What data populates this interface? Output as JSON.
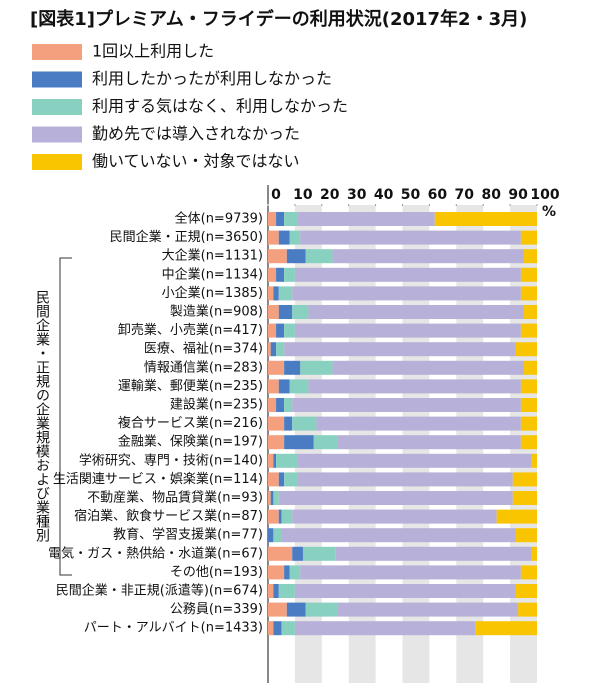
{
  "chart_data": {
    "type": "stacked_barh",
    "title": "[図表1]プレミアム・フライデーの利用状況(2017年2・3月)",
    "group_label": "民間企業・正規の企業規模および業種別",
    "unit": "%",
    "categories": [
      "全体(n=9739)",
      "民間企業・正規(n=3650)",
      "大企業(n=1131)",
      "中企業(n=1134)",
      "小企業(n=1385)",
      "製造業(n=908)",
      "卸売業、小売業(n=417)",
      "医療、福祉(n=374)",
      "情報通信業(n=283)",
      "運輸業、郵便業(n=235)",
      "建設業(n=235)",
      "複合サービス業(n=216)",
      "金融業、保険業(n=197)",
      "学術研究、専門・技術(n=140)",
      "生活関連サービス・娯楽業(n=114)",
      "不動産業、物品賃貸業(n=93)",
      "宿泊業、飲食サービス業(n=87)",
      "教育、学習支援業(n=77)",
      "電気・ガス・熱供給・水道業(n=67)",
      "その他(n=193)",
      "民間企業・非正規(派遣等)(n=674)",
      "公務員(n=339)",
      "パート・アルバイト(n=1433)"
    ],
    "series": [
      {
        "name": "1回以上利用した",
        "color": "#f4a07f",
        "values": [
          3,
          4,
          7,
          3,
          2,
          4,
          3,
          1,
          6,
          4,
          3,
          6,
          6,
          2,
          4,
          1,
          4,
          0,
          9,
          6,
          2,
          7,
          2
        ]
      },
      {
        "name": "利用したかったが利用しなかった",
        "color": "#4a7cc4",
        "values": [
          3,
          4,
          7,
          3,
          2,
          5,
          3,
          2,
          6,
          4,
          3,
          3,
          11,
          1,
          2,
          1,
          1,
          2,
          4,
          2,
          2,
          7,
          3
        ]
      },
      {
        "name": "利用する気はなく、利用しなかった",
        "color": "#88d0c0",
        "values": [
          5,
          4,
          10,
          4,
          5,
          6,
          4,
          3,
          12,
          7,
          3,
          9,
          9,
          8,
          5,
          2,
          4,
          3,
          12,
          4,
          6,
          12,
          5
        ]
      },
      {
        "name": "勤め先では導入されなかった",
        "color": "#b7b0d8",
        "values": [
          51,
          82,
          71,
          84,
          85,
          80,
          84,
          86,
          71,
          79,
          85,
          76,
          68,
          87,
          80,
          87,
          76,
          87,
          73,
          82,
          82,
          67,
          67
        ]
      },
      {
        "name": "働いていない・対象ではない",
        "color": "#f9c500",
        "values": [
          38,
          6,
          5,
          6,
          6,
          5,
          6,
          8,
          5,
          6,
          6,
          6,
          6,
          2,
          9,
          9,
          15,
          8,
          2,
          6,
          8,
          7,
          23
        ]
      }
    ],
    "xlim": [
      0,
      100
    ],
    "xticks": [
      0,
      10,
      20,
      30,
      40,
      50,
      60,
      70,
      80,
      90,
      100
    ]
  }
}
